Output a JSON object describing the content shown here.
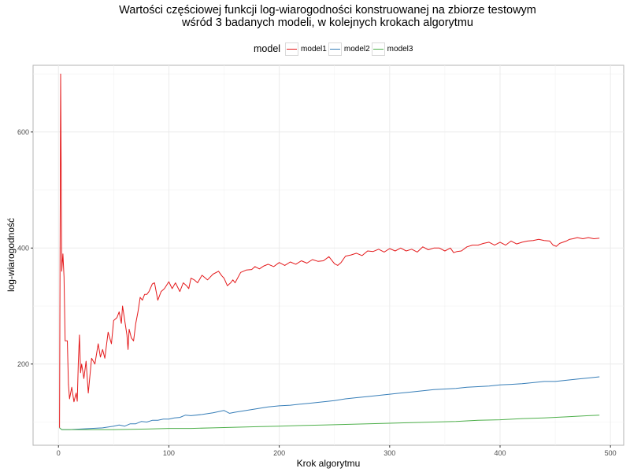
{
  "chart_data": {
    "type": "line",
    "title_line1": "Wartości częściowej funkcji log-wiarogodności konstruowanej na zbiorze testowym",
    "title_line2": "wśród 3 badanych modeli, w kolejnych krokach algorytmu",
    "xlabel": "Krok algorytmu",
    "ylabel": "log-wiarogodność",
    "legend_title": "model",
    "legend_position": "top",
    "grid": true,
    "xlim": [
      -23,
      512
    ],
    "ylim": [
      60,
      715
    ],
    "x_ticks": [
      0,
      100,
      200,
      300,
      400,
      500
    ],
    "y_ticks": [
      200,
      400,
      600
    ],
    "colors": {
      "model1": "#E41A1C",
      "model2": "#377EB8",
      "model3": "#4DAF4A"
    },
    "series": [
      {
        "name": "model1",
        "color": "#E41A1C",
        "points": [
          [
            1,
            90
          ],
          [
            2,
            700
          ],
          [
            3,
            360
          ],
          [
            4,
            390
          ],
          [
            5,
            350
          ],
          [
            6,
            240
          ],
          [
            8,
            240
          ],
          [
            9,
            165
          ],
          [
            10,
            140
          ],
          [
            12,
            160
          ],
          [
            14,
            135
          ],
          [
            16,
            150
          ],
          [
            17,
            136
          ],
          [
            18,
            205
          ],
          [
            19,
            250
          ],
          [
            20,
            185
          ],
          [
            21,
            200
          ],
          [
            23,
            175
          ],
          [
            25,
            205
          ],
          [
            27,
            150
          ],
          [
            30,
            210
          ],
          [
            33,
            200
          ],
          [
            36,
            235
          ],
          [
            38,
            212
          ],
          [
            40,
            225
          ],
          [
            42,
            210
          ],
          [
            45,
            255
          ],
          [
            48,
            235
          ],
          [
            50,
            275
          ],
          [
            53,
            280
          ],
          [
            55,
            290
          ],
          [
            57,
            270
          ],
          [
            58,
            300
          ],
          [
            60,
            275
          ],
          [
            62,
            250
          ],
          [
            63,
            225
          ],
          [
            64,
            260
          ],
          [
            66,
            245
          ],
          [
            68,
            240
          ],
          [
            70,
            270
          ],
          [
            72,
            290
          ],
          [
            74,
            315
          ],
          [
            76,
            310
          ],
          [
            78,
            320
          ],
          [
            80,
            320
          ],
          [
            82,
            325
          ],
          [
            85,
            338
          ],
          [
            87,
            340
          ],
          [
            90,
            310
          ],
          [
            93,
            325
          ],
          [
            96,
            330
          ],
          [
            100,
            342
          ],
          [
            103,
            330
          ],
          [
            106,
            340
          ],
          [
            110,
            325
          ],
          [
            113,
            340
          ],
          [
            116,
            335
          ],
          [
            118,
            330
          ],
          [
            120,
            348
          ],
          [
            123,
            345
          ],
          [
            126,
            340
          ],
          [
            130,
            353
          ],
          [
            135,
            345
          ],
          [
            140,
            355
          ],
          [
            145,
            360
          ],
          [
            148,
            352
          ],
          [
            150,
            348
          ],
          [
            153,
            335
          ],
          [
            156,
            340
          ],
          [
            158,
            345
          ],
          [
            160,
            340
          ],
          [
            165,
            358
          ],
          [
            170,
            362
          ],
          [
            175,
            363
          ],
          [
            178,
            368
          ],
          [
            182,
            364
          ],
          [
            186,
            369
          ],
          [
            190,
            372
          ],
          [
            195,
            368
          ],
          [
            200,
            375
          ],
          [
            205,
            370
          ],
          [
            210,
            376
          ],
          [
            215,
            372
          ],
          [
            220,
            378
          ],
          [
            225,
            374
          ],
          [
            230,
            380
          ],
          [
            235,
            377
          ],
          [
            240,
            378
          ],
          [
            245,
            385
          ],
          [
            250,
            373
          ],
          [
            253,
            370
          ],
          [
            256,
            375
          ],
          [
            260,
            386
          ],
          [
            265,
            388
          ],
          [
            270,
            391
          ],
          [
            275,
            387
          ],
          [
            280,
            395
          ],
          [
            285,
            394
          ],
          [
            290,
            398
          ],
          [
            295,
            393
          ],
          [
            300,
            399
          ],
          [
            305,
            395
          ],
          [
            310,
            400
          ],
          [
            315,
            395
          ],
          [
            320,
            398
          ],
          [
            325,
            393
          ],
          [
            330,
            402
          ],
          [
            335,
            397
          ],
          [
            340,
            400
          ],
          [
            345,
            400
          ],
          [
            350,
            395
          ],
          [
            355,
            400
          ],
          [
            358,
            392
          ],
          [
            361,
            394
          ],
          [
            365,
            395
          ],
          [
            370,
            402
          ],
          [
            375,
            405
          ],
          [
            380,
            405
          ],
          [
            385,
            408
          ],
          [
            390,
            410
          ],
          [
            395,
            405
          ],
          [
            400,
            410
          ],
          [
            405,
            405
          ],
          [
            410,
            412
          ],
          [
            415,
            407
          ],
          [
            420,
            410
          ],
          [
            425,
            412
          ],
          [
            430,
            413
          ],
          [
            435,
            415
          ],
          [
            440,
            413
          ],
          [
            445,
            412
          ],
          [
            448,
            405
          ],
          [
            451,
            403
          ],
          [
            454,
            408
          ],
          [
            457,
            410
          ],
          [
            460,
            412
          ],
          [
            463,
            415
          ],
          [
            466,
            416
          ],
          [
            470,
            418
          ],
          [
            475,
            416
          ],
          [
            480,
            418
          ],
          [
            485,
            416
          ],
          [
            490,
            417
          ]
        ]
      },
      {
        "name": "model2",
        "color": "#377EB8",
        "points": [
          [
            1,
            90
          ],
          [
            3,
            87
          ],
          [
            10,
            87
          ],
          [
            20,
            88
          ],
          [
            30,
            89
          ],
          [
            40,
            90
          ],
          [
            50,
            93
          ],
          [
            55,
            95
          ],
          [
            60,
            93
          ],
          [
            65,
            97
          ],
          [
            70,
            97
          ],
          [
            75,
            101
          ],
          [
            80,
            100
          ],
          [
            85,
            103
          ],
          [
            90,
            103
          ],
          [
            95,
            105
          ],
          [
            100,
            105
          ],
          [
            105,
            107
          ],
          [
            110,
            108
          ],
          [
            115,
            112
          ],
          [
            120,
            111
          ],
          [
            130,
            113
          ],
          [
            140,
            116
          ],
          [
            145,
            118
          ],
          [
            150,
            120
          ],
          [
            155,
            115
          ],
          [
            160,
            117
          ],
          [
            170,
            120
          ],
          [
            180,
            123
          ],
          [
            190,
            126
          ],
          [
            200,
            128
          ],
          [
            210,
            129
          ],
          [
            220,
            131
          ],
          [
            230,
            133
          ],
          [
            240,
            135
          ],
          [
            250,
            137
          ],
          [
            260,
            140
          ],
          [
            270,
            142
          ],
          [
            280,
            144
          ],
          [
            290,
            146
          ],
          [
            300,
            148
          ],
          [
            310,
            150
          ],
          [
            320,
            152
          ],
          [
            330,
            154
          ],
          [
            340,
            156
          ],
          [
            350,
            157
          ],
          [
            360,
            158
          ],
          [
            370,
            160
          ],
          [
            380,
            161
          ],
          [
            390,
            162
          ],
          [
            400,
            164
          ],
          [
            410,
            165
          ],
          [
            420,
            166
          ],
          [
            430,
            168
          ],
          [
            440,
            170
          ],
          [
            450,
            170
          ],
          [
            460,
            172
          ],
          [
            470,
            174
          ],
          [
            480,
            176
          ],
          [
            490,
            178
          ]
        ]
      },
      {
        "name": "model3",
        "color": "#4DAF4A",
        "points": [
          [
            1,
            90
          ],
          [
            3,
            87
          ],
          [
            20,
            87
          ],
          [
            50,
            87
          ],
          [
            80,
            88
          ],
          [
            100,
            89
          ],
          [
            120,
            89
          ],
          [
            140,
            90
          ],
          [
            160,
            91
          ],
          [
            180,
            92
          ],
          [
            200,
            93
          ],
          [
            220,
            94
          ],
          [
            240,
            95
          ],
          [
            260,
            96
          ],
          [
            280,
            97
          ],
          [
            300,
            98
          ],
          [
            320,
            99
          ],
          [
            340,
            100
          ],
          [
            360,
            101
          ],
          [
            380,
            103
          ],
          [
            400,
            104
          ],
          [
            420,
            106
          ],
          [
            440,
            107
          ],
          [
            460,
            109
          ],
          [
            480,
            111
          ],
          [
            490,
            112
          ]
        ]
      }
    ]
  }
}
